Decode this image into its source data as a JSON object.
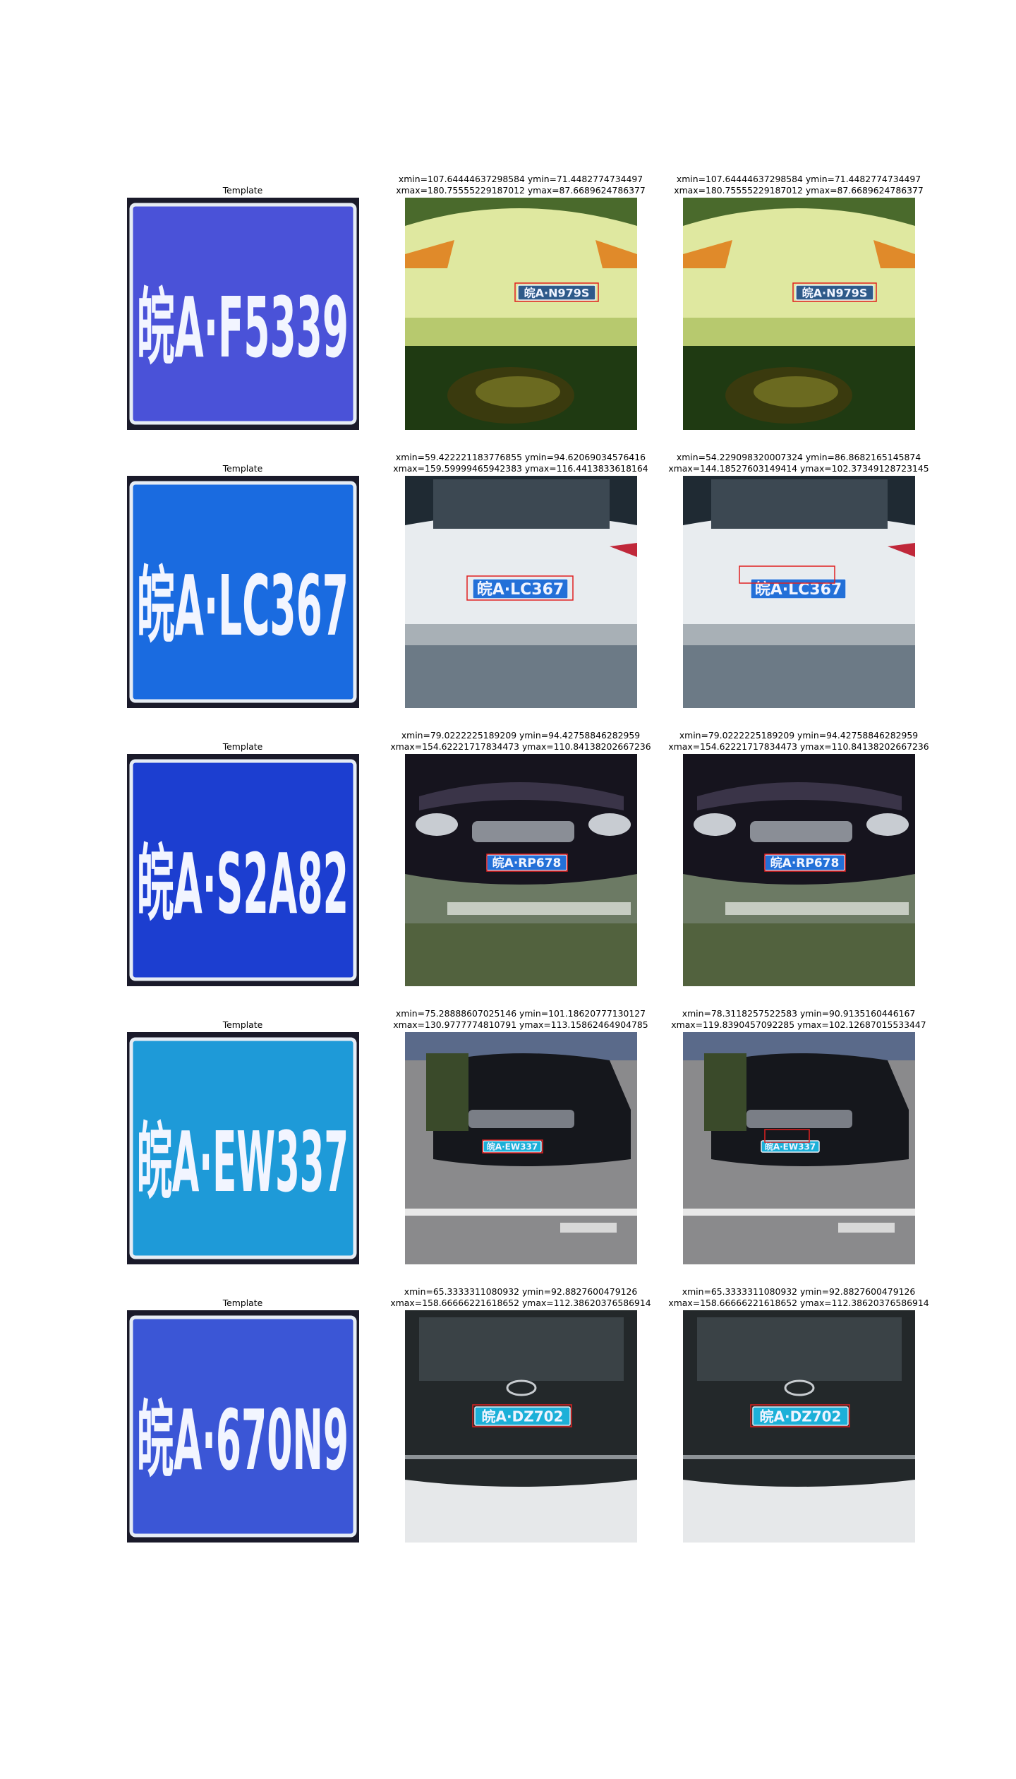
{
  "rows": [
    {
      "template_title": "Template",
      "template_plate": "皖A·F5339",
      "template_bg": "#4a52d8",
      "scene_plate": "皖A·N979S",
      "scene_style": "sedan-rear-green",
      "panels": [
        {
          "line1": "xmin=107.64444637298584 ymin=71.4482774734497",
          "line2": "xmax=180.75555229187012 ymax=87.6689624786377"
        },
        {
          "line1": "xmin=107.64444637298584 ymin=71.4482774734497",
          "line2": "xmax=180.75555229187012 ymax=87.6689624786377"
        }
      ]
    },
    {
      "template_title": "Template",
      "template_plate": "皖A·LC367",
      "template_bg": "#1a6be0",
      "scene_plate": "皖A·LC367",
      "scene_style": "suv-rear-white",
      "panels": [
        {
          "line1": "xmin=59.422221183776855 ymin=94.62069034576416",
          "line2": "xmax=159.59999465942383 ymax=116.4413833618164"
        },
        {
          "line1": "xmin=54.229098320007324 ymin=86.8682165145874",
          "line2": "xmax=144.18527603149414 ymax=102.37349128723145"
        }
      ]
    },
    {
      "template_title": "Template",
      "template_plate": "皖A·S2A82",
      "template_bg": "#1c3ed0",
      "scene_plate": "皖A·RP678",
      "scene_style": "sedan-front-dark",
      "panels": [
        {
          "line1": "xmin=79.0222225189209 ymin=94.42758846282959",
          "line2": "xmax=154.62221717834473 ymax=110.84138202667236"
        },
        {
          "line1": "xmin=79.0222225189209 ymin=94.42758846282959",
          "line2": "xmax=154.62221717834473 ymax=110.84138202667236"
        }
      ]
    },
    {
      "template_title": "Template",
      "template_plate": "皖A·EW337",
      "template_bg": "#1e9ad8",
      "scene_plate": "皖A·EW337",
      "scene_style": "sedan-front-black",
      "panels": [
        {
          "line1": "xmin=75.28888607025146 ymin=101.18620777130127",
          "line2": "xmax=130.9777774810791 ymax=113.15862464904785"
        },
        {
          "line1": "xmin=78.3118257522583 ymin=90.9135160446167",
          "line2": "xmax=119.8390457092285 ymax=102.12687015533447"
        }
      ]
    },
    {
      "template_title": "Template",
      "template_plate": "皖A·670N9",
      "template_bg": "#3b56d6",
      "scene_plate": "皖A·DZ702",
      "scene_style": "suv-rear-dark",
      "panels": [
        {
          "line1": "xmin=65.3333311080932 ymin=92.8827600479126",
          "line2": "xmax=158.66666221618652 ymax=112.38620376586914"
        },
        {
          "line1": "xmin=65.3333311080932 ymin=92.8827600479126",
          "line2": "xmax=158.66666221618652 ymax=112.38620376586914"
        }
      ]
    }
  ],
  "colors": {
    "detection_box": "#e02020",
    "plate_text": "#f0f4ff"
  }
}
